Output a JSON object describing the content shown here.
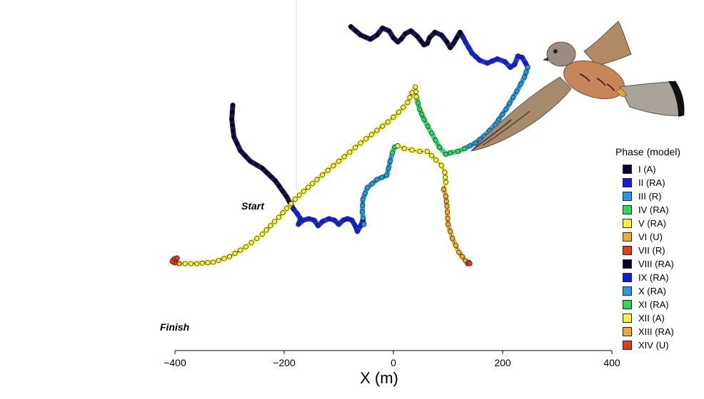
{
  "chart_data": {
    "type": "line",
    "xlabel": "X (m)",
    "xlim": [
      -400,
      400
    ],
    "xticks": [
      -400,
      -200,
      0,
      200,
      400
    ],
    "xtick_labels": [
      "−400",
      "−200",
      "0",
      "200",
      "400"
    ],
    "ylim": [
      -120,
      380
    ],
    "annotations": {
      "start": "Start",
      "finish": "Finish"
    },
    "legend": {
      "title": "Phase (model)",
      "placement": "right",
      "entries": [
        {
          "label": "I (A)",
          "color": "#00003f"
        },
        {
          "label": "II (RA)",
          "color": "#0a1fee"
        },
        {
          "label": "III (R)",
          "color": "#1f9be8"
        },
        {
          "label": "IV (RA)",
          "color": "#27dc5d"
        },
        {
          "label": "V (RA)",
          "color": "#f4f42a"
        },
        {
          "label": "VI (U)",
          "color": "#f2ab2a"
        },
        {
          "label": "VII (R)",
          "color": "#ea3a12"
        },
        {
          "label": "VIII (RA)",
          "color": "#00003f"
        },
        {
          "label": "IX (RA)",
          "color": "#0a1fee"
        },
        {
          "label": "X (RA)",
          "color": "#1f9be8"
        },
        {
          "label": "XI (RA)",
          "color": "#27dc5d"
        },
        {
          "label": "XII (A)",
          "color": "#f4f42a"
        },
        {
          "label": "XIII (RA)",
          "color": "#f2ab2a"
        },
        {
          "label": "XIV (U)",
          "color": "#ea3a12"
        }
      ]
    },
    "series": [
      {
        "phase": 1,
        "color": "#00003f",
        "points": [
          [
            -294,
            230
          ],
          [
            -296,
            210
          ],
          [
            -292,
            185
          ],
          [
            -280,
            165
          ],
          [
            -262,
            150
          ],
          [
            -240,
            140
          ],
          [
            -216,
            122
          ],
          [
            -196,
            100
          ],
          [
            -183,
            82
          ]
        ]
      },
      {
        "phase": 2,
        "color": "#0a1fee",
        "points": [
          [
            -183,
            82
          ],
          [
            -176,
            75
          ],
          [
            -170,
            68
          ],
          [
            -174,
            60
          ],
          [
            -165,
            66
          ],
          [
            -155,
            68
          ],
          [
            -145,
            66
          ],
          [
            -138,
            58
          ],
          [
            -130,
            64
          ],
          [
            -118,
            68
          ],
          [
            -108,
            66
          ],
          [
            -100,
            60
          ],
          [
            -92,
            66
          ],
          [
            -84,
            68
          ],
          [
            -76,
            66
          ],
          [
            -70,
            58
          ],
          [
            -66,
            50
          ],
          [
            -60,
            58
          ],
          [
            -56,
            66
          ],
          [
            -54,
            60
          ]
        ]
      },
      {
        "phase": 3,
        "color": "#1f9be8",
        "points": [
          [
            -54,
            60
          ],
          [
            -57,
            78
          ],
          [
            -56,
            96
          ],
          [
            -48,
            112
          ],
          [
            -30,
            124
          ],
          [
            -12,
            130
          ],
          [
            -6,
            150
          ],
          [
            -2,
            162
          ]
        ]
      },
      {
        "phase": 4,
        "color": "#27dc5d",
        "points": [
          [
            -2,
            162
          ],
          [
            2,
            170
          ],
          [
            8,
            172
          ]
        ]
      },
      {
        "phase": 5,
        "color": "#f4f42a",
        "points": [
          [
            8,
            172
          ],
          [
            20,
            168
          ],
          [
            34,
            166
          ],
          [
            48,
            164
          ],
          [
            62,
            164
          ],
          [
            70,
            158
          ],
          [
            78,
            152
          ],
          [
            88,
            144
          ],
          [
            94,
            134
          ],
          [
            96,
            120
          ],
          [
            92,
            110
          ]
        ]
      },
      {
        "phase": 6,
        "color": "#f2ab2a",
        "points": [
          [
            92,
            110
          ],
          [
            96,
            100
          ],
          [
            98,
            86
          ],
          [
            100,
            60
          ],
          [
            108,
            40
          ],
          [
            120,
            20
          ],
          [
            132,
            8
          ],
          [
            136,
            4
          ]
        ]
      },
      {
        "phase": 7,
        "color": "#ea3a12",
        "points": [
          [
            136,
            4
          ],
          [
            138,
            6
          ],
          [
            140,
            4
          ]
        ]
      },
      {
        "phase": 8,
        "color": "#00003f",
        "points": [
          [
            -78,
            342
          ],
          [
            -60,
            330
          ],
          [
            -42,
            324
          ],
          [
            -30,
            330
          ],
          [
            -20,
            340
          ],
          [
            -8,
            336
          ],
          [
            0,
            326
          ],
          [
            8,
            320
          ],
          [
            14,
            324
          ],
          [
            22,
            332
          ],
          [
            32,
            336
          ],
          [
            44,
            328
          ],
          [
            56,
            316
          ],
          [
            62,
            318
          ],
          [
            66,
            326
          ],
          [
            76,
            334
          ],
          [
            88,
            330
          ],
          [
            98,
            320
          ],
          [
            104,
            312
          ],
          [
            110,
            318
          ],
          [
            116,
            326
          ],
          [
            122,
            334
          ],
          [
            128,
            326
          ]
        ]
      },
      {
        "phase": 9,
        "color": "#0a1fee",
        "points": [
          [
            128,
            326
          ],
          [
            132,
            320
          ],
          [
            144,
            304
          ],
          [
            158,
            294
          ],
          [
            172,
            290
          ],
          [
            190,
            296
          ],
          [
            204,
            292
          ],
          [
            214,
            284
          ],
          [
            222,
            288
          ],
          [
            228,
            300
          ],
          [
            236,
            298
          ],
          [
            242,
            290
          ],
          [
            246,
            284
          ]
        ]
      },
      {
        "phase": 10,
        "color": "#1f9be8",
        "points": [
          [
            246,
            284
          ],
          [
            240,
            270
          ],
          [
            226,
            250
          ],
          [
            206,
            224
          ],
          [
            186,
            202
          ],
          [
            166,
            186
          ],
          [
            150,
            176
          ],
          [
            140,
            172
          ],
          [
            130,
            168
          ]
        ]
      },
      {
        "phase": 11,
        "color": "#27dc5d",
        "points": [
          [
            130,
            168
          ],
          [
            118,
            164
          ],
          [
            104,
            162
          ],
          [
            96,
            160
          ],
          [
            84,
            170
          ],
          [
            70,
            190
          ],
          [
            56,
            210
          ],
          [
            48,
            224
          ],
          [
            42,
            242
          ]
        ]
      },
      {
        "phase": 12,
        "color": "#f4f42a",
        "points": [
          [
            42,
            242
          ],
          [
            40,
            256
          ],
          [
            34,
            248
          ],
          [
            26,
            234
          ],
          [
            10,
            220
          ],
          [
            -10,
            206
          ],
          [
            -30,
            194
          ],
          [
            -60,
            176
          ],
          [
            -100,
            150
          ],
          [
            -140,
            124
          ],
          [
            -180,
            96
          ],
          [
            -210,
            70
          ],
          [
            -240,
            46
          ],
          [
            -270,
            28
          ],
          [
            -300,
            14
          ],
          [
            -330,
            6
          ],
          [
            -360,
            4
          ],
          [
            -392,
            4
          ]
        ]
      },
      {
        "phase": 13,
        "color": "#f2ab2a",
        "points": [
          [
            -392,
            4
          ],
          [
            -400,
            6
          ],
          [
            -404,
            8
          ]
        ]
      },
      {
        "phase": 14,
        "color": "#ea3a12",
        "points": [
          [
            -404,
            8
          ],
          [
            -401,
            11
          ],
          [
            -396,
            12
          ],
          [
            -400,
            5
          ],
          [
            -405,
            7
          ]
        ]
      }
    ],
    "grid": false
  },
  "image": {
    "subject": "kestrel-photo"
  }
}
